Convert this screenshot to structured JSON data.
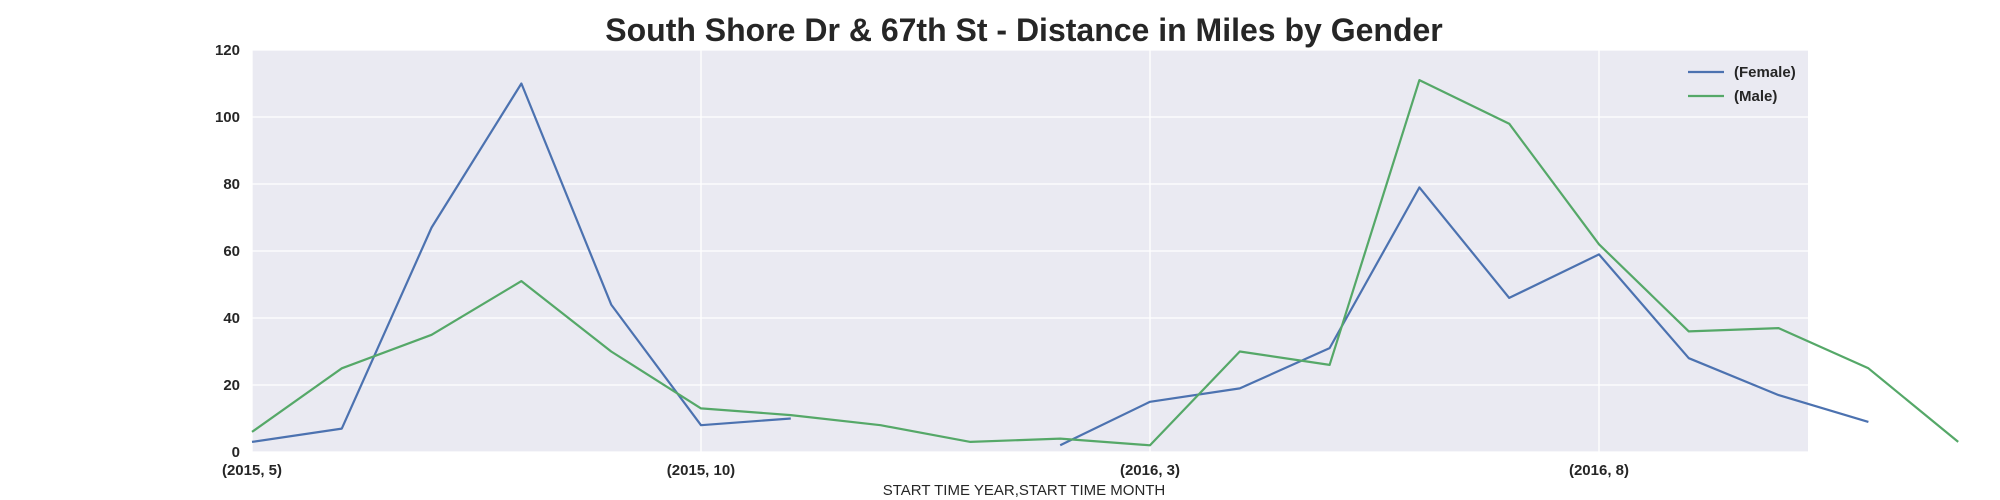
{
  "chart_data": {
    "type": "line",
    "title": "South Shore Dr & 67th St - Distance in Miles by Gender",
    "xlabel": "START TIME YEAR,START TIME MONTH",
    "ylabel": "",
    "ylim": [
      0,
      120
    ],
    "yticks": [
      "0",
      "20",
      "40",
      "60",
      "80",
      "100",
      "120"
    ],
    "x_categories": [
      "(2015, 5)",
      "(2015, 6)",
      "(2015, 7)",
      "(2015, 8)",
      "(2015, 9)",
      "(2015, 10)",
      "(2015, 11)",
      "(2015, 12)",
      "(2016, 1)",
      "(2016, 2)",
      "(2016, 3)",
      "(2016, 4)",
      "(2016, 5)",
      "(2016, 6)",
      "(2016, 7)",
      "(2016, 8)",
      "(2016, 9)",
      "(2016, 10)",
      "(2016, 11)",
      "(2016, 12)"
    ],
    "x_tick_labels": [
      "(2015, 5)",
      "(2015, 10)",
      "(2016, 3)",
      "(2016, 8)"
    ],
    "grid": true,
    "legend_position": "top-right",
    "series": [
      {
        "name": "(Female)",
        "color": "#4c72b0",
        "values": [
          3,
          7,
          67,
          110,
          44,
          8,
          10,
          null,
          null,
          2,
          15,
          19,
          31,
          79,
          46,
          59,
          28,
          17,
          9,
          null
        ]
      },
      {
        "name": "(Male)",
        "color": "#55a868",
        "values": [
          6,
          25,
          35,
          51,
          30,
          13,
          11,
          8,
          3,
          4,
          2,
          30,
          26,
          111,
          98,
          62,
          36,
          37,
          25,
          3
        ]
      }
    ]
  }
}
